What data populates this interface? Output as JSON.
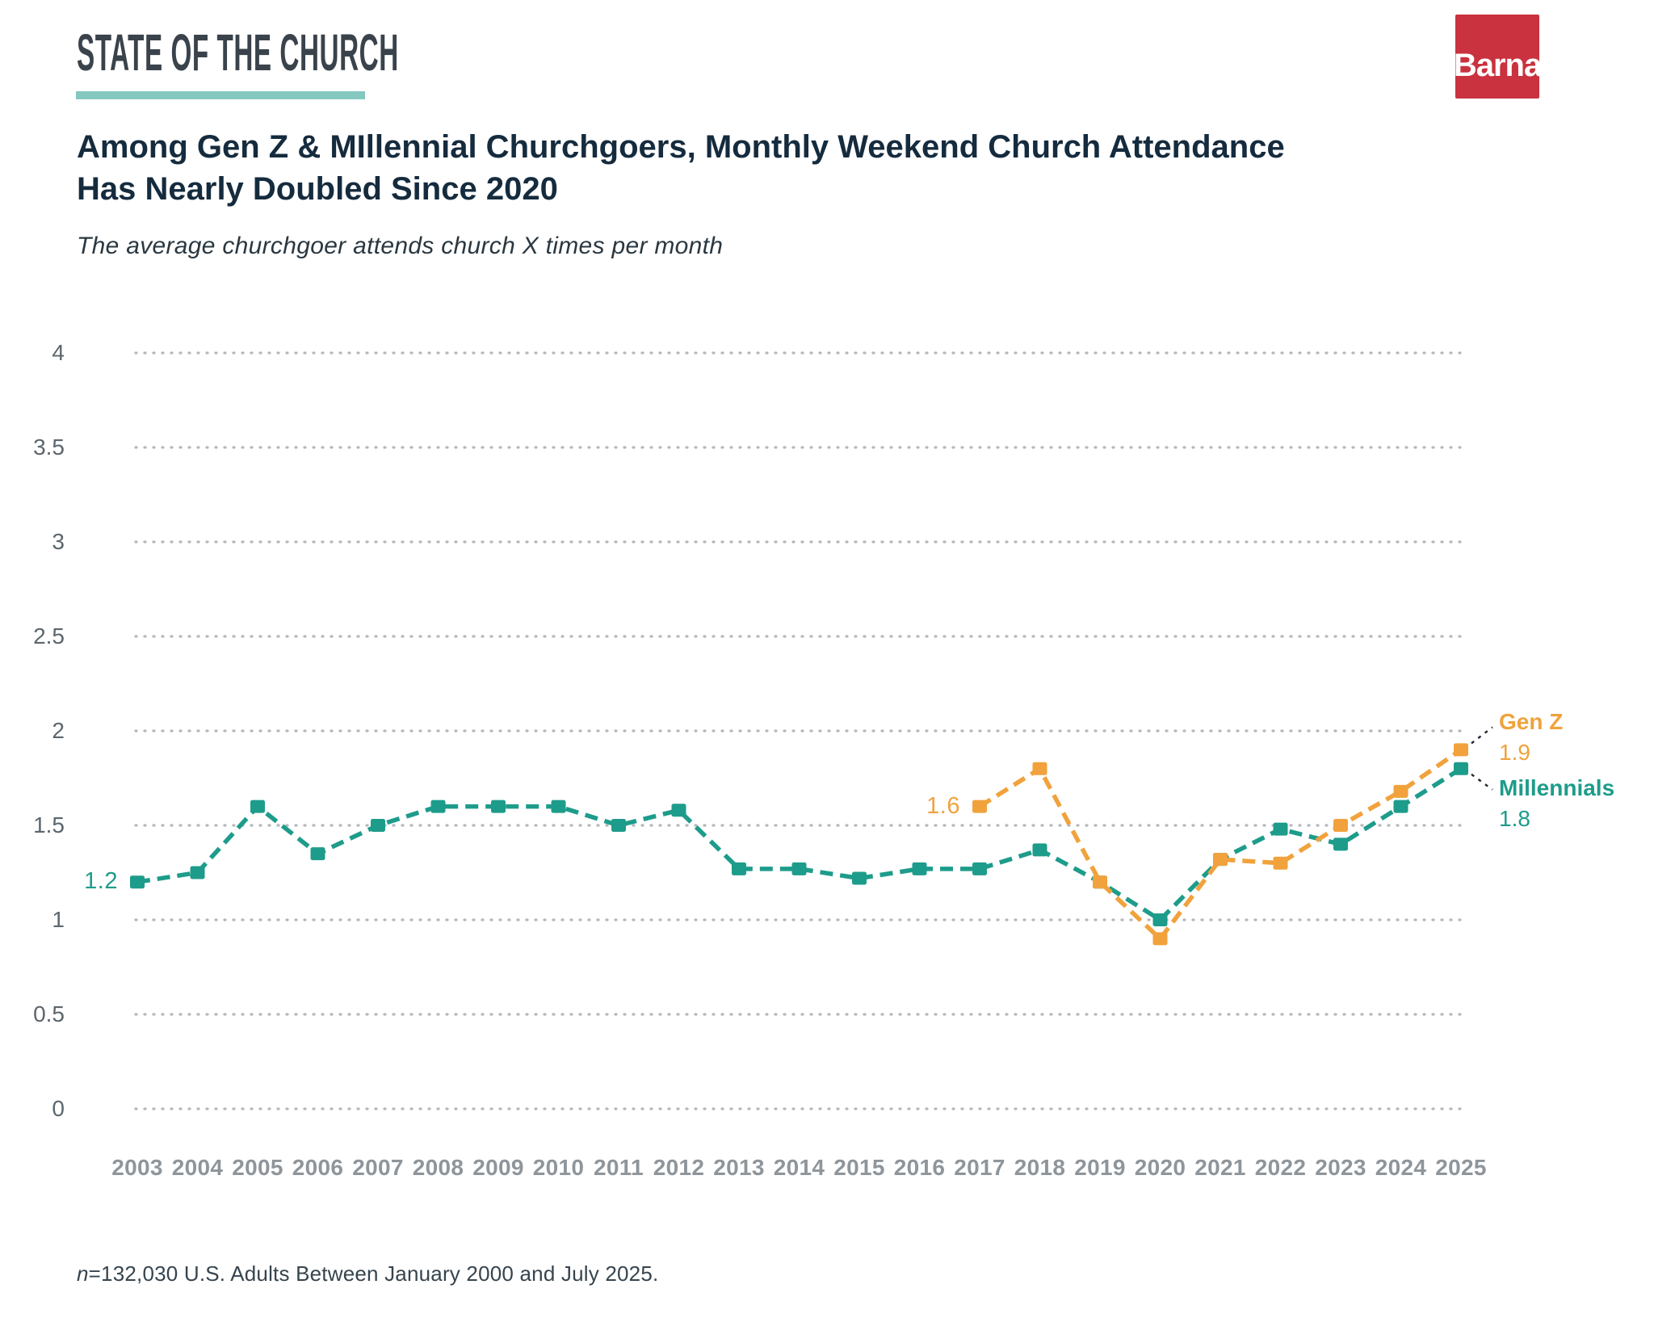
{
  "page": {
    "kicker": "STATE OF THE CHURCH",
    "logo_text": "Barna",
    "title": "Among Gen Z & MIllennial Churchgoers, Monthly Weekend Church Attendance Has Nearly Doubled Since 2020",
    "subtitle": "The average churchgoer attends church X times per month",
    "footnote_n": "n",
    "footnote_text": "=132,030 U.S. Adults Between January 2000 and July 2025."
  },
  "colors": {
    "genz_orange": "#F1A23C",
    "millennials_teal": "#1E9C8B",
    "kicker_text": "#3A434B",
    "kicker_underline": "#85C8C0",
    "logo_red": "#C9323E",
    "title_navy": "#152B3E",
    "grid_dots": "#B3B8BC",
    "y_labels": "#5C666D",
    "x_labels": "#8E959B",
    "connector": "#1F2730"
  },
  "chart_data": {
    "type": "line",
    "title": "Among Gen Z & MIllennial Churchgoers, Monthly Weekend Church Attendance Has Nearly Doubled Since 2020",
    "subtitle": "The average churchgoer attends church X times per month",
    "x": [
      2003,
      2004,
      2005,
      2006,
      2007,
      2008,
      2009,
      2010,
      2011,
      2012,
      2013,
      2014,
      2015,
      2016,
      2017,
      2018,
      2019,
      2020,
      2021,
      2022,
      2023,
      2024,
      2025
    ],
    "ylim": [
      0,
      4
    ],
    "ytick_step": 0.5,
    "grid": "dotted-horizontal",
    "legend_position": "right-end-of-lines",
    "series": [
      {
        "name": "Millennials",
        "color": "#1E9C8B",
        "values": [
          1.2,
          1.25,
          1.6,
          1.35,
          1.5,
          1.6,
          1.6,
          1.6,
          1.5,
          1.58,
          1.27,
          1.27,
          1.22,
          1.27,
          1.27,
          1.37,
          1.2,
          1.0,
          1.32,
          1.48,
          1.4,
          1.6,
          1.8
        ]
      },
      {
        "name": "Gen Z",
        "color": "#F1A23C",
        "values": [
          null,
          null,
          null,
          null,
          null,
          null,
          null,
          null,
          null,
          null,
          null,
          null,
          null,
          null,
          1.6,
          1.8,
          1.2,
          0.9,
          1.32,
          1.3,
          1.5,
          1.68,
          1.9
        ]
      }
    ],
    "point_labels": [
      {
        "text": "1.2",
        "series": "Millennials",
        "year": 2003,
        "side": "left"
      },
      {
        "text": "1.6",
        "series": "Gen Z",
        "year": 2017,
        "side": "left"
      }
    ],
    "end_labels": [
      {
        "label": "Gen Z",
        "value": "1.9",
        "color": "#F1A23C"
      },
      {
        "label": "Millennials",
        "value": "1.8",
        "color": "#1E9C8B"
      }
    ]
  }
}
